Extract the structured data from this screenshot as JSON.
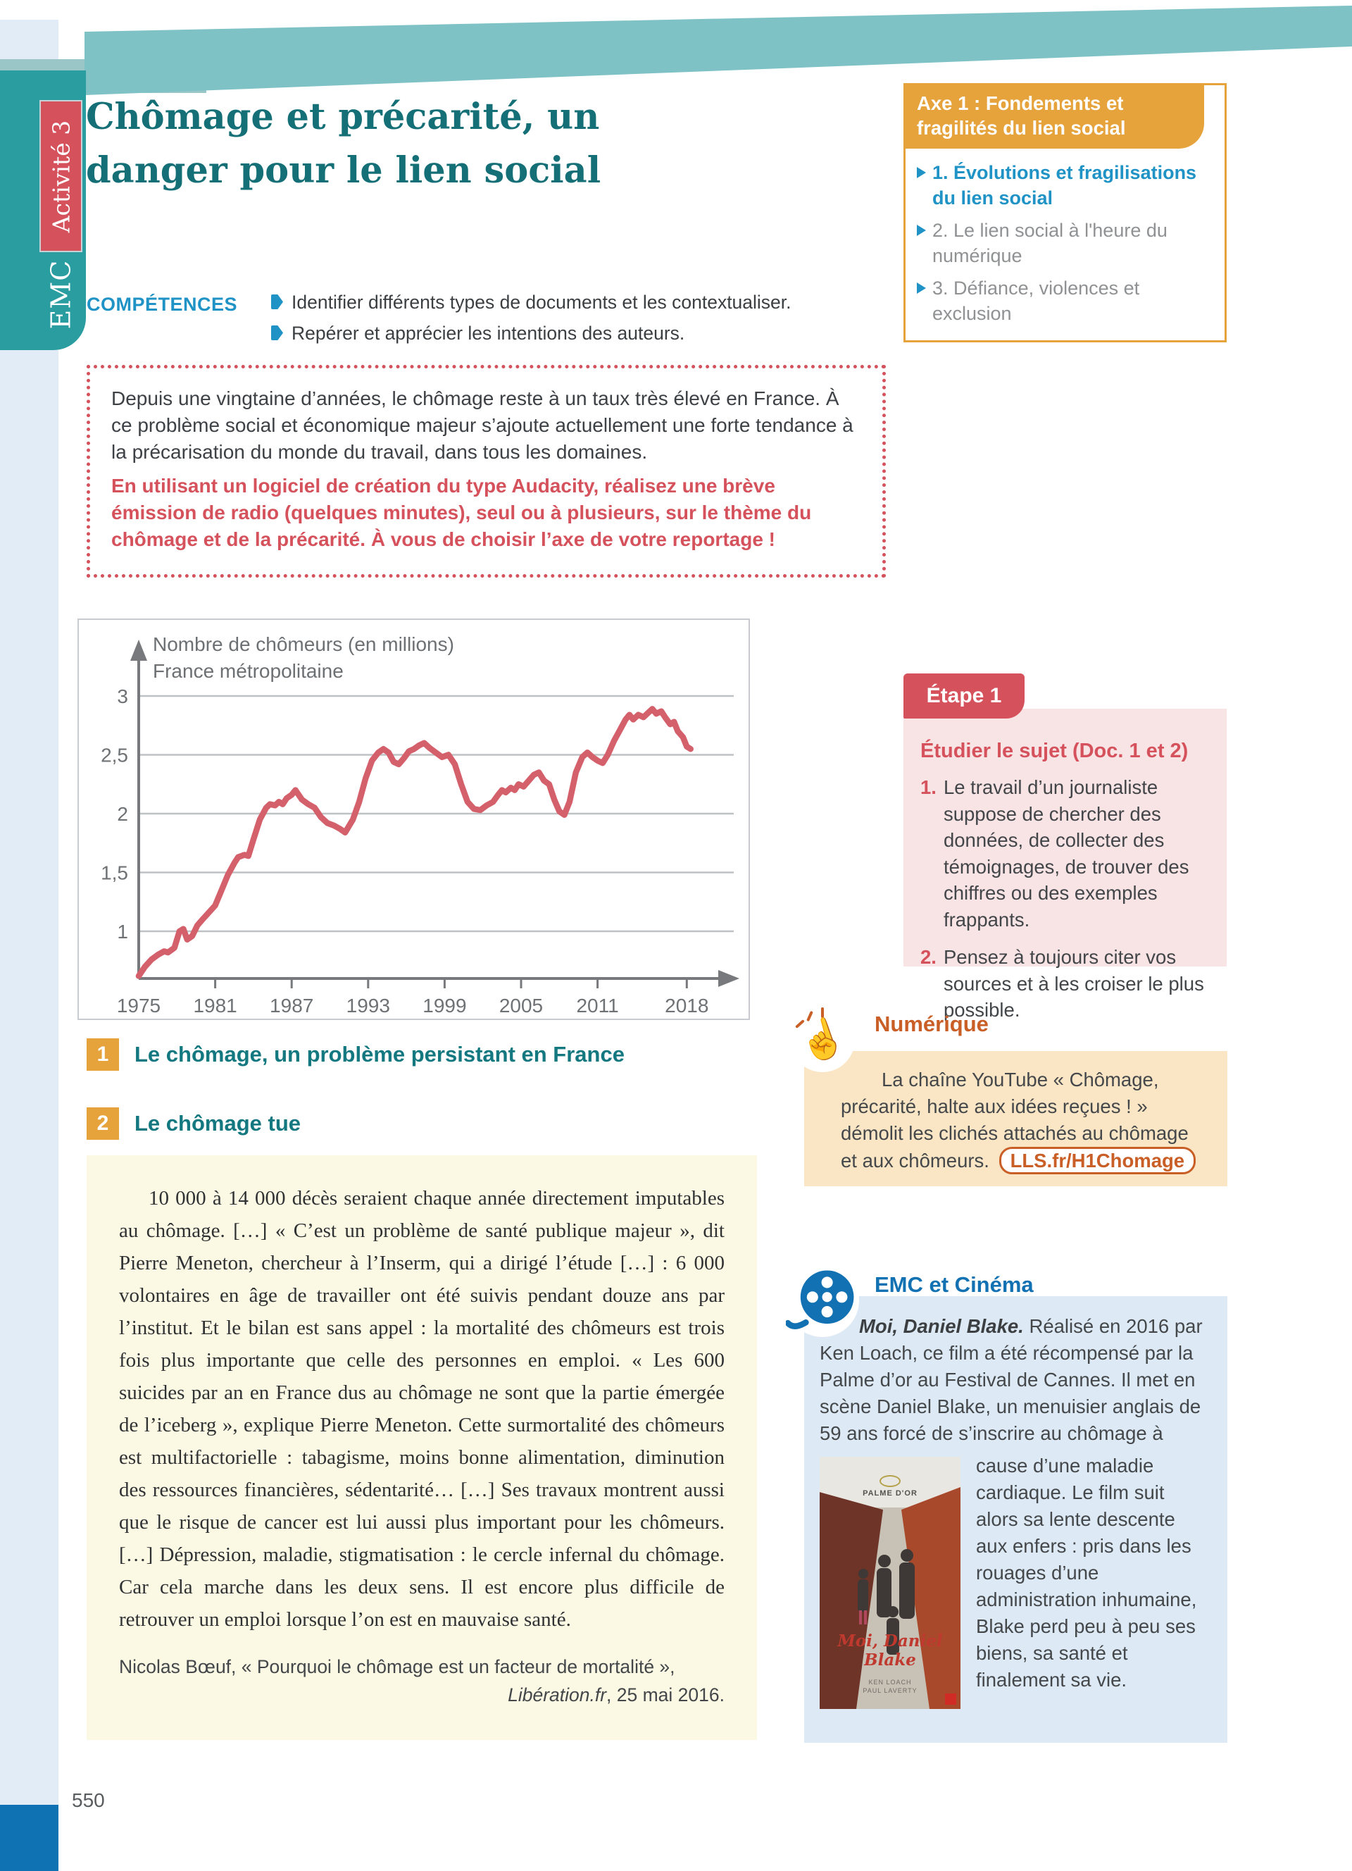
{
  "page": {
    "number": "550"
  },
  "sidebar": {
    "subject": "EMC",
    "activity_badge": "Activité 3"
  },
  "header": {
    "title_line1": "Chômage et précarité, un",
    "title_line2": "danger pour le lien social",
    "competences_label": "COMPÉTENCES",
    "competences": [
      "Identifier différents types de documents et les contextualiser.",
      "Repérer et apprécier les intentions des auteurs."
    ]
  },
  "axe_box": {
    "header": "Axe 1 : Fondements et fragilités du lien social",
    "items": [
      {
        "label": "1. Évolutions et fragilisations du lien social"
      },
      {
        "label": "2. Le lien social à l'heure du numérique"
      },
      {
        "label": "3. Défiance, violences et exclusion"
      }
    ]
  },
  "intro": {
    "paragraph": "Depuis une vingtaine d’années, le chômage reste à un taux très élevé en France. À ce problème social et économique majeur s’ajoute actuellement une forte tendance à la précarisation du monde du travail, dans tous les domaines.",
    "mission": "En utilisant un logiciel de création du type Audacity, réalisez une brève émission de radio (quelques minutes), seul ou à plusieurs, sur le thème du chômage et de la précarité. À vous de choisir l’axe de votre reportage !"
  },
  "chart_data": {
    "type": "line",
    "title": "Nombre de chômeurs (en millions)",
    "subtitle": "France métropolitaine",
    "xlabel": "",
    "ylabel": "Nombre de chômeurs (en millions)",
    "x_ticks": [
      1975,
      1981,
      1987,
      1993,
      1999,
      2005,
      2011,
      2018
    ],
    "y_ticks": [
      1,
      1.5,
      2,
      2.5,
      3
    ],
    "y_tick_labels": [
      "1",
      "1,5",
      "2",
      "2,5",
      "3"
    ],
    "xlim": [
      1975,
      2019
    ],
    "ylim": [
      0.6,
      3.3
    ],
    "grid": true,
    "line_color": "#d4606b",
    "series": [
      {
        "name": "Nombre de chômeurs, France métropolitaine",
        "points": [
          [
            1975.0,
            0.62
          ],
          [
            1975.5,
            0.7
          ],
          [
            1976.0,
            0.76
          ],
          [
            1976.5,
            0.8
          ],
          [
            1977.0,
            0.83
          ],
          [
            1977.3,
            0.82
          ],
          [
            1977.8,
            0.86
          ],
          [
            1978.2,
            1.0
          ],
          [
            1978.5,
            1.02
          ],
          [
            1978.8,
            0.93
          ],
          [
            1979.2,
            0.96
          ],
          [
            1979.6,
            1.05
          ],
          [
            1980.0,
            1.1
          ],
          [
            1980.5,
            1.16
          ],
          [
            1981.0,
            1.22
          ],
          [
            1981.5,
            1.35
          ],
          [
            1982.0,
            1.48
          ],
          [
            1982.5,
            1.58
          ],
          [
            1982.8,
            1.63
          ],
          [
            1983.3,
            1.65
          ],
          [
            1983.6,
            1.64
          ],
          [
            1984.0,
            1.78
          ],
          [
            1984.5,
            1.95
          ],
          [
            1985.0,
            2.05
          ],
          [
            1985.3,
            2.08
          ],
          [
            1985.7,
            2.07
          ],
          [
            1986.0,
            2.1
          ],
          [
            1986.3,
            2.08
          ],
          [
            1986.6,
            2.13
          ],
          [
            1987.0,
            2.16
          ],
          [
            1987.3,
            2.2
          ],
          [
            1987.8,
            2.12
          ],
          [
            1988.3,
            2.08
          ],
          [
            1988.8,
            2.05
          ],
          [
            1989.3,
            1.97
          ],
          [
            1989.8,
            1.92
          ],
          [
            1990.3,
            1.9
          ],
          [
            1990.8,
            1.87
          ],
          [
            1991.2,
            1.84
          ],
          [
            1991.8,
            1.95
          ],
          [
            1992.3,
            2.1
          ],
          [
            1992.8,
            2.3
          ],
          [
            1993.3,
            2.45
          ],
          [
            1993.8,
            2.52
          ],
          [
            1994.2,
            2.55
          ],
          [
            1994.6,
            2.52
          ],
          [
            1995.0,
            2.44
          ],
          [
            1995.4,
            2.42
          ],
          [
            1995.8,
            2.47
          ],
          [
            1996.2,
            2.53
          ],
          [
            1996.6,
            2.55
          ],
          [
            1997.0,
            2.58
          ],
          [
            1997.4,
            2.6
          ],
          [
            1997.8,
            2.56
          ],
          [
            1998.3,
            2.52
          ],
          [
            1998.8,
            2.48
          ],
          [
            1999.3,
            2.5
          ],
          [
            1999.8,
            2.42
          ],
          [
            2000.3,
            2.25
          ],
          [
            2000.8,
            2.1
          ],
          [
            2001.3,
            2.04
          ],
          [
            2001.8,
            2.03
          ],
          [
            2002.3,
            2.07
          ],
          [
            2002.8,
            2.1
          ],
          [
            2003.2,
            2.16
          ],
          [
            2003.5,
            2.2
          ],
          [
            2003.8,
            2.18
          ],
          [
            2004.2,
            2.22
          ],
          [
            2004.5,
            2.2
          ],
          [
            2004.8,
            2.25
          ],
          [
            2005.2,
            2.23
          ],
          [
            2005.6,
            2.28
          ],
          [
            2006.0,
            2.33
          ],
          [
            2006.4,
            2.35
          ],
          [
            2006.8,
            2.28
          ],
          [
            2007.2,
            2.25
          ],
          [
            2007.6,
            2.12
          ],
          [
            2008.0,
            2.02
          ],
          [
            2008.4,
            1.99
          ],
          [
            2008.8,
            2.1
          ],
          [
            2009.3,
            2.35
          ],
          [
            2009.8,
            2.48
          ],
          [
            2010.2,
            2.52
          ],
          [
            2010.6,
            2.48
          ],
          [
            2011.0,
            2.45
          ],
          [
            2011.4,
            2.43
          ],
          [
            2011.8,
            2.5
          ],
          [
            2012.3,
            2.62
          ],
          [
            2012.8,
            2.72
          ],
          [
            2013.2,
            2.8
          ],
          [
            2013.5,
            2.84
          ],
          [
            2013.8,
            2.8
          ],
          [
            2014.2,
            2.84
          ],
          [
            2014.6,
            2.82
          ],
          [
            2015.0,
            2.86
          ],
          [
            2015.3,
            2.89
          ],
          [
            2015.6,
            2.85
          ],
          [
            2016.0,
            2.87
          ],
          [
            2016.3,
            2.82
          ],
          [
            2016.7,
            2.76
          ],
          [
            2017.0,
            2.78
          ],
          [
            2017.3,
            2.7
          ],
          [
            2017.7,
            2.65
          ],
          [
            2018.0,
            2.57
          ],
          [
            2018.3,
            2.55
          ]
        ]
      }
    ]
  },
  "doc1": {
    "number": "1",
    "title": "Le chômage, un problème persistant en France"
  },
  "doc2": {
    "number": "2",
    "title": "Le chômage tue",
    "body": "10 000 à 14 000 décès seraient chaque année directement imputables au chômage. […] « C’est un problème de santé publique majeur », dit Pierre Meneton, chercheur à l’Inserm, qui a dirigé l’étude […] : 6 000 volontaires en âge de travailler ont été suivis pendant douze ans par l’institut. Et le bilan est sans appel : la mortalité des chômeurs est trois fois plus importante que celle des personnes en emploi. « Les 600 suicides par an en France dus au chômage ne sont que la partie émergée de l’iceberg », explique Pierre Meneton. Cette surmortalité des chômeurs est multifactorielle : tabagisme, moins bonne alimentation, diminution des ressources financières, sédentarité… […] Ses travaux montrent aussi que le risque de cancer est lui aussi plus important pour les chômeurs. […] Dépression, maladie, stigmatisation : le cercle infernal du chômage. Car cela marche dans les deux sens. Il est encore plus difficile de retrouver un emploi lorsque l’on est en mauvaise santé.",
    "source_author": "Nicolas Bœuf, « Pourquoi le chômage est un facteur de mortalité »,",
    "source_journal": "Libération.fr",
    "source_date": ", 25 mai 2016."
  },
  "etape": {
    "tab": "Étape 1",
    "title": "Étudier le sujet (Doc. 1 et 2)",
    "items": [
      {
        "num": "1.",
        "text": "Le travail d’un journaliste suppose de chercher des données, de collecter des témoignages, de trouver des chiffres ou des exemples frappants."
      },
      {
        "num": "2.",
        "text": "Pensez à toujours citer vos sources et à les croiser le plus possible."
      }
    ]
  },
  "numerique": {
    "title": "Numérique",
    "text": "La chaîne YouTube « Chômage, précarité, halte aux idées reçues ! » démolit les clichés attachés au chômage et aux chômeurs.",
    "link": "LLS.fr/H1Chomage"
  },
  "cinema": {
    "title": "EMC et Cinéma",
    "film_title": "Moi, Daniel Blake.",
    "text_top": " Réalisé en 2016 par Ken Loach, ce film a été récompensé par la Palme d’or au Festival de Cannes. Il met en scène Daniel Blake, un menuisier anglais de 59 ans forcé de s’inscrire au chômage à",
    "text_side": "cause d’une maladie cardiaque. Le film suit alors sa lente descente aux enfers : pris dans les rouages d’une administration inhumaine, Blake perd peu à peu ses biens, sa santé et finalement sa vie.",
    "poster": {
      "award": "PALME D'OR",
      "title": "Moi, Daniel Blake",
      "credit1": "KEN LOACH",
      "credit2": "PAUL LAVERTY"
    }
  }
}
